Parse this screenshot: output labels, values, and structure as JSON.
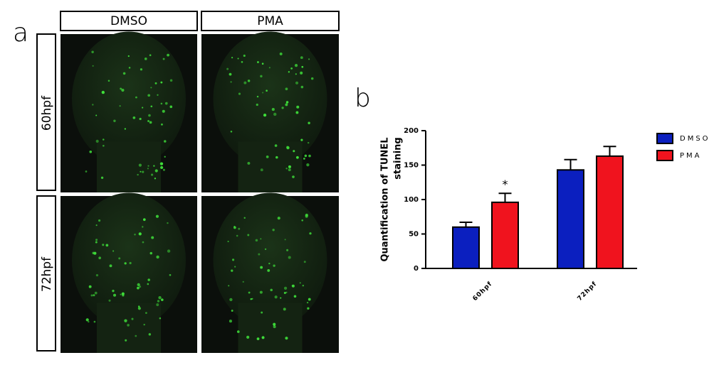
{
  "panel_a": {
    "label": "a",
    "columns": [
      "DMSO",
      "PMA"
    ],
    "rows": [
      "60hpf",
      "72hpf"
    ]
  },
  "chart_data": {
    "type": "bar",
    "panel_label": "b",
    "y_label": [
      "Quantification of TUNEL",
      "staining"
    ],
    "categories": [
      "60hpf",
      "72hpf"
    ],
    "series": [
      {
        "name": "DMSO",
        "color": "#0b1fbf",
        "values": [
          60,
          143
        ],
        "errors": [
          7,
          15
        ]
      },
      {
        "name": "PMA",
        "color": "#f0131e",
        "values": [
          96,
          163
        ],
        "errors": [
          13,
          14
        ]
      }
    ],
    "annotations": [
      {
        "text": "*",
        "series": 1,
        "category": 0
      }
    ],
    "ylim": [
      0,
      200
    ],
    "yticks": [
      0,
      50,
      100,
      150,
      200
    ],
    "legend": "right"
  }
}
